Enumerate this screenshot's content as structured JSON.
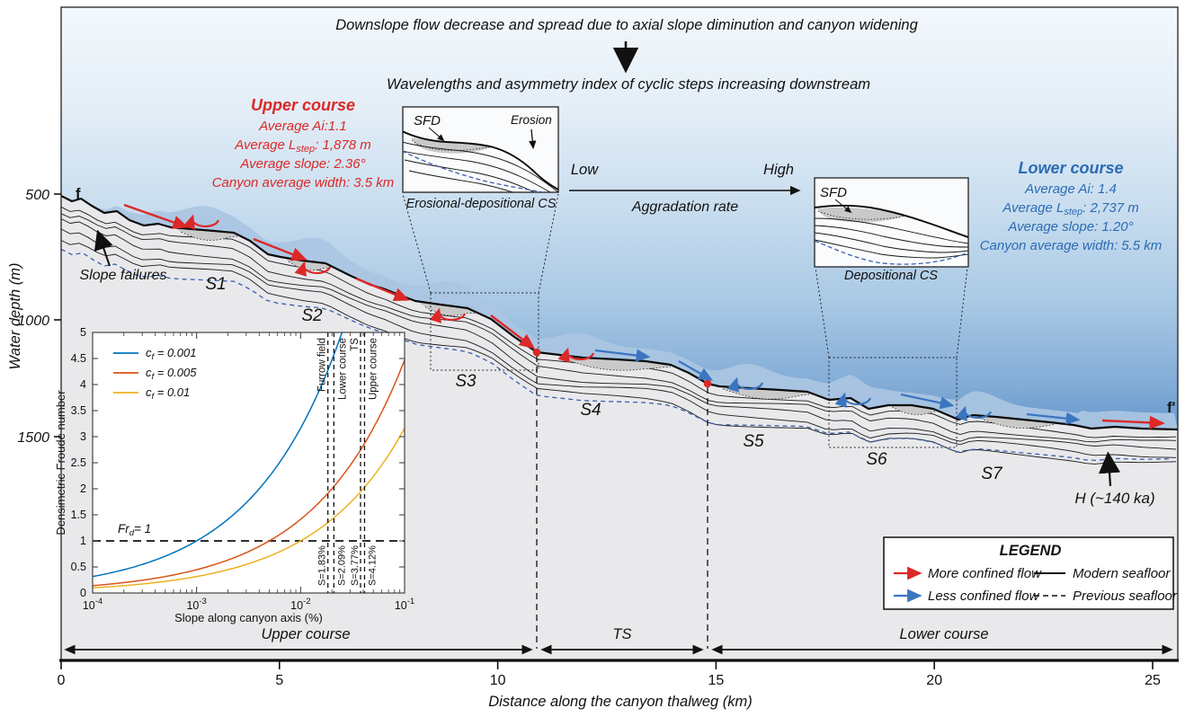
{
  "annotations": {
    "top_line1": "Downslope flow decrease and spread due to axial slope diminution and canyon widening",
    "top_line2": "Wavelengths and asymmetry index of cyclic steps increasing downstream",
    "aggradation_low": "Low",
    "aggradation_high": "High",
    "aggradation_label": "Aggradation rate",
    "slope_failures": "Slope failures",
    "h_label": "H (~140 ka)",
    "f_left": "f",
    "f_right": "f'"
  },
  "stats_upper": {
    "title": "Upper course",
    "ai": "Average Ai:1.1",
    "lstep_pre": "Average L",
    "lstep_sub": "step",
    "lstep_post": ": 1,878 m",
    "slope": "Average slope: 2.36°",
    "width": "Canyon average width: 3.5 km"
  },
  "stats_lower": {
    "title": "Lower course",
    "ai": "Average Ai: 1.4",
    "lstep_pre": "Average L",
    "lstep_sub": "step",
    "lstep_post": ": 2,737 m",
    "slope": "Average slope: 1.20°",
    "width": "Canyon average width: 5.5 km"
  },
  "insets": {
    "erosional": {
      "sfd": "SFD",
      "erosion": "Erosion",
      "caption": "Erosional-depositional CS"
    },
    "depositional": {
      "sfd": "SFD",
      "caption": "Depositional CS"
    }
  },
  "profile": {
    "steps": [
      "S1",
      "S2",
      "S3",
      "S4",
      "S5",
      "S6",
      "S7"
    ]
  },
  "y_axis": {
    "title": "Water depth (m)",
    "ticks": [
      "500",
      "1000",
      "1500"
    ]
  },
  "x_axis": {
    "title": "Distance along the canyon thalweg (km)",
    "ticks": [
      "0",
      "5",
      "10",
      "15",
      "20",
      "25"
    ]
  },
  "courses": {
    "upper": "Upper course",
    "ts": "TS",
    "lower": "Lower course"
  },
  "legend": {
    "title": "LEGEND",
    "more_confined": "More confined flow",
    "less_confined": "Less confined flow",
    "modern": "Modern seafloor",
    "previous": "Previous seafloor"
  },
  "colors": {
    "red": "#DC2827",
    "blue_text": "#2B6CB5",
    "blue_arrow": "#3B75C0",
    "previous_seafloor_blue": "#3A5FAC",
    "flow_band": "#AAC5E2",
    "subsurface_gray": "#E9E9EC",
    "sfd_gray": "#C9C9C9",
    "sea_deep": "#3D7EC0"
  },
  "chart_data": {
    "type": "line",
    "title": "",
    "xlabel": "Slope along canyon axis (%)",
    "ylabel": "Densimetric Froude number",
    "xscale": "log",
    "xlim": [
      0.0001,
      0.1
    ],
    "ylim": [
      0,
      5
    ],
    "grid": false,
    "legend_position": "top-left",
    "yticks": [
      "0",
      "0.5",
      "1",
      "1.5",
      "2",
      "2.5",
      "3",
      "3.5",
      "4",
      "4.5",
      "5"
    ],
    "xticks": [
      {
        "mantissa": "10",
        "exp": "-4"
      },
      {
        "mantissa": "10",
        "exp": "-3"
      },
      {
        "mantissa": "10",
        "exp": "-2"
      },
      {
        "mantissa": "10",
        "exp": "-1"
      }
    ],
    "curve_formula": "Fr = sqrt(S/cf), S as fraction of slope axis value",
    "series": [
      {
        "name_pre": "c",
        "name_sub": "f",
        "name_post": " = 0.001",
        "cf": 0.001,
        "color": "#0072BD",
        "points": [
          [
            0.0001,
            0.32
          ],
          [
            0.001,
            1.0
          ],
          [
            0.01,
            3.16
          ],
          [
            0.025,
            5.0
          ]
        ]
      },
      {
        "name_pre": "c",
        "name_sub": "f",
        "name_post": " = 0.005",
        "cf": 0.005,
        "color": "#D95319",
        "points": [
          [
            0.0001,
            0.14
          ],
          [
            0.001,
            0.45
          ],
          [
            0.01,
            1.41
          ],
          [
            0.1,
            4.47
          ]
        ]
      },
      {
        "name_pre": "c",
        "name_sub": "f",
        "name_post": " = 0.01",
        "cf": 0.01,
        "color": "#EDB120",
        "points": [
          [
            0.0001,
            0.1
          ],
          [
            0.001,
            0.32
          ],
          [
            0.01,
            1.0
          ],
          [
            0.1,
            3.16
          ]
        ]
      }
    ],
    "froude_line": {
      "value": 1,
      "label_pre": "Fr",
      "label_sub": "d",
      "label_post": "= 1"
    },
    "slope_markers": [
      {
        "label": "Furrow field",
        "s_label": "S=1.83%",
        "s": 0.0183
      },
      {
        "label": "Lower course",
        "s_label": "S=2.09%",
        "s": 0.0209
      },
      {
        "label": "TS",
        "s_label": "S=3.77%",
        "s": 0.0377
      },
      {
        "label": "Upper course",
        "s_label": "S=4.12%",
        "s": 0.0412
      }
    ]
  }
}
